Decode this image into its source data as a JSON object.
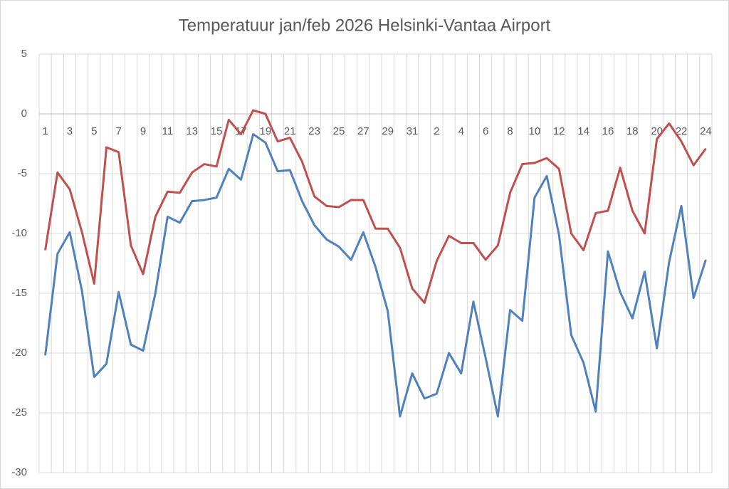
{
  "chart_data": {
    "type": "line",
    "title": "Temperatuur jan/feb 2026 Helsinki-Vantaa Airport",
    "categories": [
      "1",
      null,
      "3",
      null,
      "5",
      null,
      "7",
      null,
      "9",
      null,
      "11",
      null,
      "13",
      null,
      "15",
      null,
      "17",
      null,
      "19",
      null,
      "21",
      null,
      "23",
      null,
      "25",
      null,
      "27",
      null,
      "29",
      null,
      "31",
      null,
      "2",
      null,
      "4",
      null,
      "6",
      null,
      "8",
      null,
      "10",
      null,
      "12",
      null,
      "14",
      null,
      "16",
      null,
      "18",
      null,
      "20",
      null,
      "22",
      null,
      "24"
    ],
    "series": [
      {
        "color": "#4f81bd",
        "values": [
          -20.2,
          -11.7,
          -9.9,
          -14.8,
          -22.0,
          -20.9,
          -14.9,
          -19.3,
          -19.8,
          -15.0,
          -8.6,
          -9.1,
          -7.3,
          -7.2,
          -7.0,
          -4.6,
          -5.5,
          -1.7,
          -2.4,
          -4.8,
          -4.7,
          -7.3,
          -9.3,
          -10.5,
          -11.1,
          -12.2,
          -9.9,
          -12.8,
          -16.5,
          -25.3,
          -21.7,
          -23.8,
          -23.4,
          -20.0,
          -21.7,
          -15.7,
          -20.4,
          -25.3,
          -16.4,
          -17.3,
          -7.0,
          -5.2,
          -10.1,
          -18.5,
          -20.8,
          -24.9,
          -11.5,
          -14.9,
          -17.1,
          -13.2,
          -19.6,
          -12.4,
          -7.7,
          -15.4,
          -12.2
        ]
      },
      {
        "color": "#c0504d",
        "values": [
          -11.4,
          -4.9,
          -6.3,
          -9.9,
          -14.2,
          -2.8,
          -3.2,
          -11.0,
          -13.4,
          -8.6,
          -6.5,
          -6.6,
          -4.9,
          -4.2,
          -4.4,
          -0.5,
          -1.7,
          0.3,
          0.0,
          -2.3,
          -2.0,
          -4.0,
          -6.9,
          -7.7,
          -7.8,
          -7.2,
          -7.2,
          -9.6,
          -9.6,
          -11.2,
          -14.6,
          -15.8,
          -12.3,
          -10.2,
          -10.8,
          -10.8,
          -12.2,
          -11.0,
          -6.6,
          -4.2,
          -4.1,
          -3.7,
          -4.6,
          -10.0,
          -11.4,
          -8.3,
          -8.1,
          -4.5,
          -8.1,
          -10.0,
          -2.1,
          -0.8,
          -2.3,
          -4.3,
          -2.9
        ]
      }
    ],
    "ylim": [
      -30,
      5
    ],
    "yticks": [
      5,
      0,
      -5,
      -10,
      -15,
      -20,
      -25,
      -30
    ],
    "grid": true
  }
}
